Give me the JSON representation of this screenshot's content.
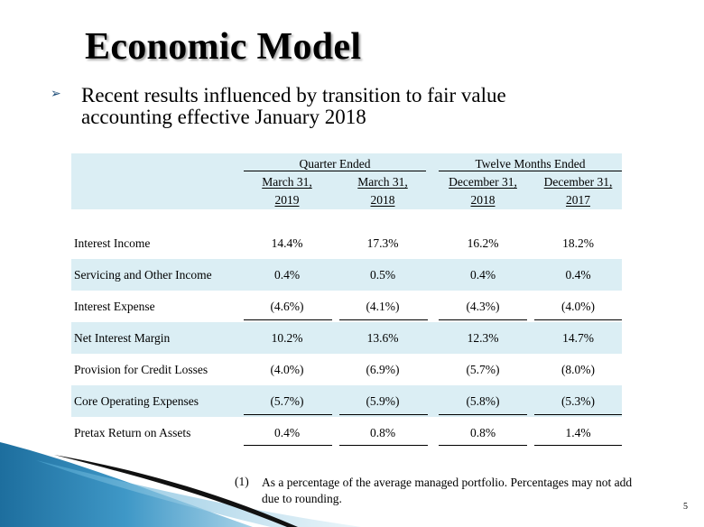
{
  "slide": {
    "title": "Economic Model",
    "bullet_glyph": "➢",
    "bullet_text": "Recent results influenced by transition to fair value accounting effective January 2018",
    "page_number": "5"
  },
  "table": {
    "group_headers": [
      "Quarter Ended",
      "Twelve Months Ended"
    ],
    "columns": [
      {
        "line1": "March 31,",
        "line2": "2019"
      },
      {
        "line1": "March 31,",
        "line2": "2018"
      },
      {
        "line1": "December 31,",
        "line2": "2018"
      },
      {
        "line1": "December 31,",
        "line2": "2017"
      }
    ],
    "rows": [
      {
        "label": "Interest Income",
        "values": [
          "14.4%",
          "17.3%",
          "16.2%",
          "18.2%"
        ]
      },
      {
        "label": "Servicing and Other Income",
        "values": [
          "0.4%",
          "0.5%",
          "0.4%",
          "0.4%"
        ]
      },
      {
        "label": "Interest Expense",
        "values": [
          "(4.6%)",
          "(4.1%)",
          "(4.3%)",
          "(4.0%)"
        ]
      },
      {
        "label": "Net Interest Margin",
        "values": [
          "10.2%",
          "13.6%",
          "12.3%",
          "14.7%"
        ]
      },
      {
        "label": "Provision for Credit Losses",
        "values": [
          "(4.0%)",
          "(6.9%)",
          "(5.7%)",
          "(8.0%)"
        ]
      },
      {
        "label": "Core Operating Expenses",
        "values": [
          "(5.7%)",
          "(5.9%)",
          "(5.8%)",
          "(5.3%)"
        ]
      },
      {
        "label": "Pretax Return on Assets",
        "values": [
          "0.4%",
          "0.8%",
          "0.8%",
          "1.4%"
        ]
      }
    ]
  },
  "footnote": {
    "marker": "(1)",
    "text": "As a percentage of the average managed portfolio.  Percentages may not add due to rounding."
  },
  "colors": {
    "band": "#dbeef4",
    "bullet": "#1f4e79",
    "deco_blue": "#2a7fb0",
    "deco_dark": "#111111"
  }
}
